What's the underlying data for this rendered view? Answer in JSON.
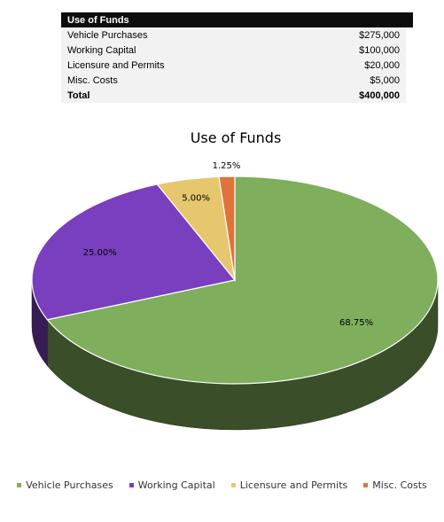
{
  "table": {
    "header": "Use of Funds",
    "rows": [
      {
        "label": "Vehicle Purchases",
        "amount": "$275,000"
      },
      {
        "label": "Working Capital",
        "amount": "$100,000"
      },
      {
        "label": "Licensure and Permits",
        "amount": "$20,000"
      },
      {
        "label": "Misc. Costs",
        "amount": "$5,000"
      }
    ],
    "total": {
      "label": "Total",
      "amount": "$400,000"
    }
  },
  "chart_data": {
    "type": "pie",
    "title": "Use of Funds",
    "style": "3d",
    "legend_position": "bottom",
    "categories": [
      "Vehicle Purchases",
      "Working Capital",
      "Licensure and Permits",
      "Misc. Costs"
    ],
    "values": [
      275000,
      100000,
      20000,
      5000
    ],
    "data_labels": [
      "68.75%",
      "25.00%",
      "5.00%",
      "1.25%"
    ],
    "colors": [
      "#7fae5c",
      "#7a3fbf",
      "#e6c76e",
      "#e0733a"
    ]
  }
}
